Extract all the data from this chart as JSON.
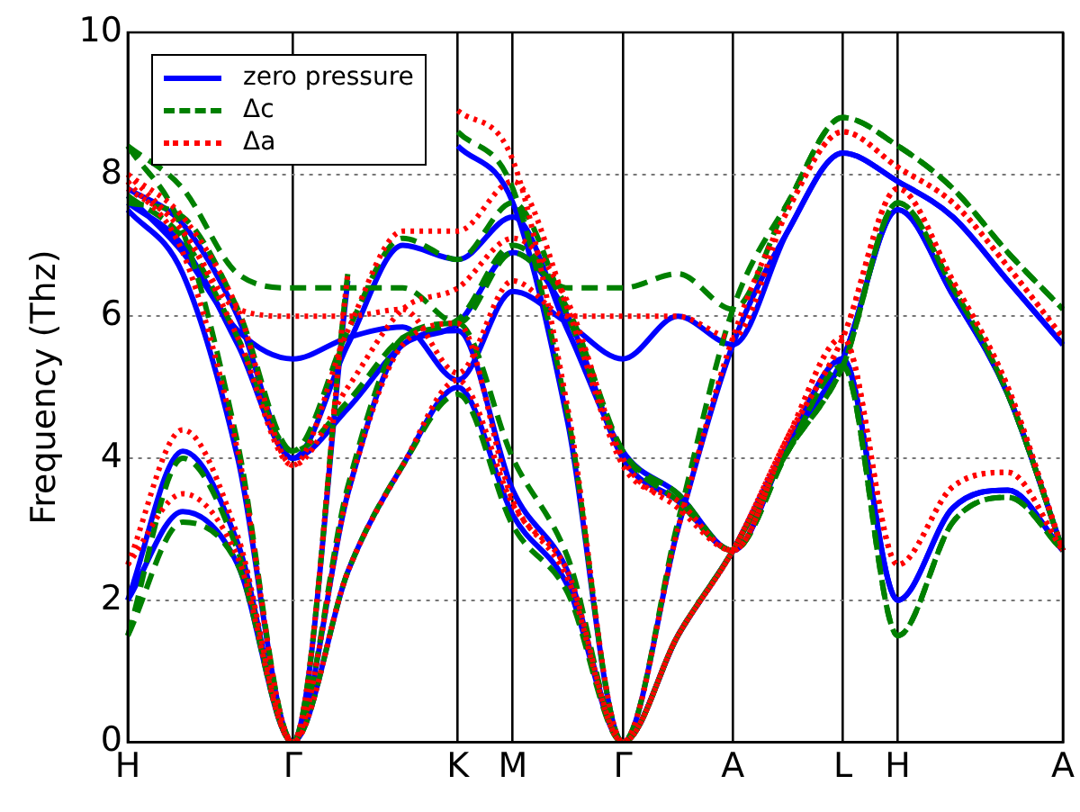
{
  "chart_data": {
    "type": "line",
    "ylabel": "Frequency (Thz)",
    "categories": [
      "H",
      null,
      null,
      "Γ",
      null,
      null,
      "K",
      "M",
      null,
      "Γ",
      null,
      "A",
      null,
      "L",
      "H",
      null,
      null,
      "A"
    ],
    "ylim": [
      0,
      10
    ],
    "yticks": [
      0,
      2,
      4,
      6,
      8,
      10
    ],
    "grid": true,
    "legend": "top left",
    "marker": "none",
    "series": [
      {
        "name": "zero pressure",
        "color": "#0000ff",
        "line_style": "solid",
        "values": [
          2.0,
          3.25,
          2.5,
          0,
          2.4,
          3.9,
          5.0,
          3.2,
          2.2,
          0,
          1.5,
          2.7,
          4.2,
          5.4,
          2.0,
          3.3,
          3.55,
          2.7
        ]
      },
      {
        "color": "#0000ff",
        "line_style": "solid",
        "values": [
          2.0,
          4.1,
          2.8,
          0,
          3.5,
          5.6,
          5.8,
          3.55,
          2.4,
          0,
          1.5,
          2.7,
          4.2,
          5.4,
          7.5,
          6.3,
          4.9,
          2.7
        ]
      },
      {
        "color": "#0000ff",
        "line_style": "solid",
        "values": [
          7.5,
          6.6,
          4.0,
          0,
          6.5,
          null,
          8.4,
          7.6,
          4.5,
          0,
          3.0,
          5.6,
          7.2,
          8.3,
          7.9,
          7.4,
          6.5,
          5.6
        ]
      },
      {
        "color": "#0000ff",
        "line_style": "solid",
        "values": [
          7.6,
          7.0,
          5.6,
          4.0,
          5.6,
          7.0,
          6.8,
          7.4,
          5.8,
          4.1,
          3.5,
          2.7,
          4.2,
          5.4,
          7.5,
          6.3,
          4.9,
          2.7
        ]
      },
      {
        "color": "#0000ff",
        "line_style": "solid",
        "values": [
          7.8,
          7.3,
          6.0,
          4.0,
          4.7,
          5.6,
          5.9,
          6.9,
          6.0,
          4.0,
          3.4,
          2.7,
          4.2,
          5.4,
          2.0,
          3.3,
          3.55,
          2.7
        ]
      },
      {
        "color": "#0000ff",
        "line_style": "solid",
        "values": [
          7.7,
          6.9,
          5.8,
          5.4,
          5.7,
          5.85,
          5.1,
          6.35,
          5.9,
          5.4,
          6.0,
          5.6,
          7.2,
          8.3,
          7.9,
          7.4,
          6.5,
          5.6
        ]
      },
      {
        "name": "Δc",
        "color": "#008000",
        "line_style": "dashed",
        "values": [
          1.5,
          3.1,
          2.5,
          0,
          2.4,
          3.9,
          4.9,
          3.05,
          2.1,
          0,
          1.5,
          2.7,
          4.1,
          5.3,
          1.5,
          3.1,
          3.45,
          2.7
        ]
      },
      {
        "color": "#008000",
        "line_style": "dashed",
        "values": [
          1.5,
          4.0,
          2.7,
          0,
          3.6,
          5.7,
          5.9,
          4.0,
          2.6,
          0,
          1.5,
          2.7,
          4.1,
          5.3,
          7.6,
          6.4,
          4.9,
          2.7
        ]
      },
      {
        "color": "#008000",
        "line_style": "dashed",
        "values": [
          8.4,
          7.2,
          4.2,
          0,
          6.6,
          null,
          8.6,
          7.8,
          4.6,
          0,
          3.1,
          6.1,
          7.6,
          8.8,
          8.4,
          7.8,
          6.9,
          6.1
        ]
      },
      {
        "color": "#008000",
        "line_style": "dashed",
        "values": [
          7.7,
          7.1,
          5.7,
          4.1,
          5.8,
          7.1,
          6.8,
          7.6,
          6.0,
          4.1,
          3.5,
          2.7,
          4.1,
          5.3,
          7.6,
          6.4,
          4.9,
          2.7
        ]
      },
      {
        "color": "#008000",
        "line_style": "dashed",
        "values": [
          7.6,
          7.4,
          6.1,
          4.1,
          4.8,
          5.7,
          5.95,
          7.0,
          6.1,
          4.1,
          3.4,
          2.7,
          4.1,
          5.3,
          1.5,
          3.1,
          3.45,
          2.7
        ]
      },
      {
        "color": "#008000",
        "line_style": "dashed",
        "values": [
          8.4,
          7.8,
          6.6,
          6.4,
          6.4,
          6.4,
          5.9,
          6.9,
          6.4,
          6.4,
          6.6,
          6.1,
          7.6,
          8.8,
          8.4,
          7.8,
          6.9,
          6.1
        ]
      },
      {
        "name": "Δa",
        "color": "#ff0000",
        "line_style": "dotted",
        "values": [
          2.5,
          3.5,
          2.6,
          0,
          2.4,
          3.9,
          5.1,
          3.35,
          2.3,
          0,
          1.5,
          2.7,
          4.3,
          5.7,
          2.5,
          3.6,
          3.8,
          2.7
        ]
      },
      {
        "color": "#ff0000",
        "line_style": "dotted",
        "values": [
          2.5,
          4.4,
          2.9,
          0,
          3.5,
          5.6,
          5.9,
          3.4,
          2.4,
          0,
          1.5,
          2.7,
          4.3,
          5.7,
          7.8,
          6.5,
          5.0,
          2.7
        ]
      },
      {
        "color": "#ff0000",
        "line_style": "dotted",
        "values": [
          7.9,
          6.9,
          4.1,
          0,
          6.6,
          null,
          8.9,
          8.2,
          4.7,
          0,
          3.0,
          5.7,
          7.5,
          8.6,
          8.1,
          7.6,
          6.7,
          5.7
        ]
      },
      {
        "color": "#ff0000",
        "line_style": "dotted",
        "values": [
          7.8,
          7.2,
          5.7,
          3.9,
          5.8,
          7.2,
          7.2,
          7.9,
          6.1,
          3.9,
          3.4,
          2.7,
          4.3,
          5.7,
          7.8,
          6.5,
          5.0,
          2.7
        ]
      },
      {
        "color": "#ff0000",
        "line_style": "dotted",
        "values": [
          8.0,
          7.4,
          6.1,
          3.9,
          5.0,
          6.1,
          6.4,
          7.1,
          6.2,
          4.0,
          3.3,
          2.7,
          4.3,
          5.7,
          2.5,
          3.6,
          3.8,
          2.7
        ]
      },
      {
        "color": "#ff0000",
        "line_style": "dotted",
        "values": [
          8.0,
          7.2,
          6.1,
          6.0,
          6.0,
          6.1,
          5.2,
          6.5,
          6.0,
          6.0,
          6.0,
          5.7,
          7.5,
          8.6,
          8.1,
          7.6,
          6.7,
          5.7
        ]
      }
    ]
  }
}
